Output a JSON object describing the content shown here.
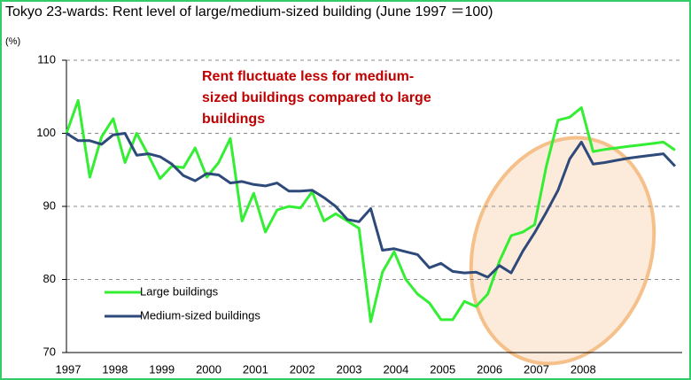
{
  "chart_data": {
    "type": "line",
    "title": "Tokyo 23-wards: Rent level of large/medium-sized building (June 1997 ＝100)",
    "y_label": "(%)",
    "annotation": [
      "Rent fluctuate less for medium-",
      "sized buildings compared to large",
      "buildings"
    ],
    "categories": [
      "1997",
      null,
      null,
      null,
      "1998",
      null,
      null,
      null,
      "1999",
      null,
      null,
      null,
      "2000",
      null,
      null,
      null,
      "2001",
      null,
      null,
      null,
      "2002",
      null,
      null,
      null,
      "2003",
      null,
      null,
      null,
      "2004",
      null,
      null,
      null,
      "2005",
      null,
      null,
      null,
      "2006",
      null,
      null,
      null,
      "2007",
      null,
      null,
      null,
      "2008",
      null,
      null,
      null,
      null,
      null,
      null,
      null,
      null
    ],
    "series": [
      {
        "name": "Large buildings",
        "color": "#33ee33",
        "values": [
          100,
          104.5,
          94,
          99.5,
          102,
          96,
          100,
          97,
          93.8,
          95.5,
          95.3,
          98,
          94,
          96,
          99.3,
          88,
          91.8,
          86.5,
          89.5,
          90,
          89.8,
          92,
          88,
          89,
          88,
          87,
          74.2,
          81,
          83.8,
          80,
          78,
          76.8,
          74.5,
          74.5,
          77,
          76.3,
          78,
          82.5,
          86,
          86.5,
          87.5,
          95.5,
          101.8,
          102.2,
          103.5,
          97.5,
          97.8,
          98,
          98.2,
          98.4,
          98.6,
          98.8,
          97.7
        ]
      },
      {
        "name": "Medium-sized buildings",
        "color": "#2e4a7a",
        "values": [
          100,
          99,
          99,
          98.5,
          99.8,
          100,
          97,
          97.2,
          96.8,
          95.8,
          94.2,
          93.5,
          94.5,
          94.3,
          93.2,
          93.4,
          93,
          92.8,
          93.2,
          92.1,
          92.1,
          92.2,
          91.2,
          90,
          88.2,
          87.9,
          89.7,
          84,
          84.2,
          83.8,
          83.4,
          81.6,
          82.2,
          81.1,
          80.9,
          81,
          80.3,
          81.9,
          80.9,
          83.9,
          86.4,
          89.2,
          92.2,
          96.5,
          98.8,
          95.8,
          96,
          96.3,
          96.6,
          96.8,
          97,
          97.2,
          95.5
        ]
      }
    ],
    "ylim": [
      70,
      110
    ],
    "yticks": [
      70,
      80,
      90,
      100,
      110
    ],
    "grid": true,
    "legend": "lower left"
  }
}
